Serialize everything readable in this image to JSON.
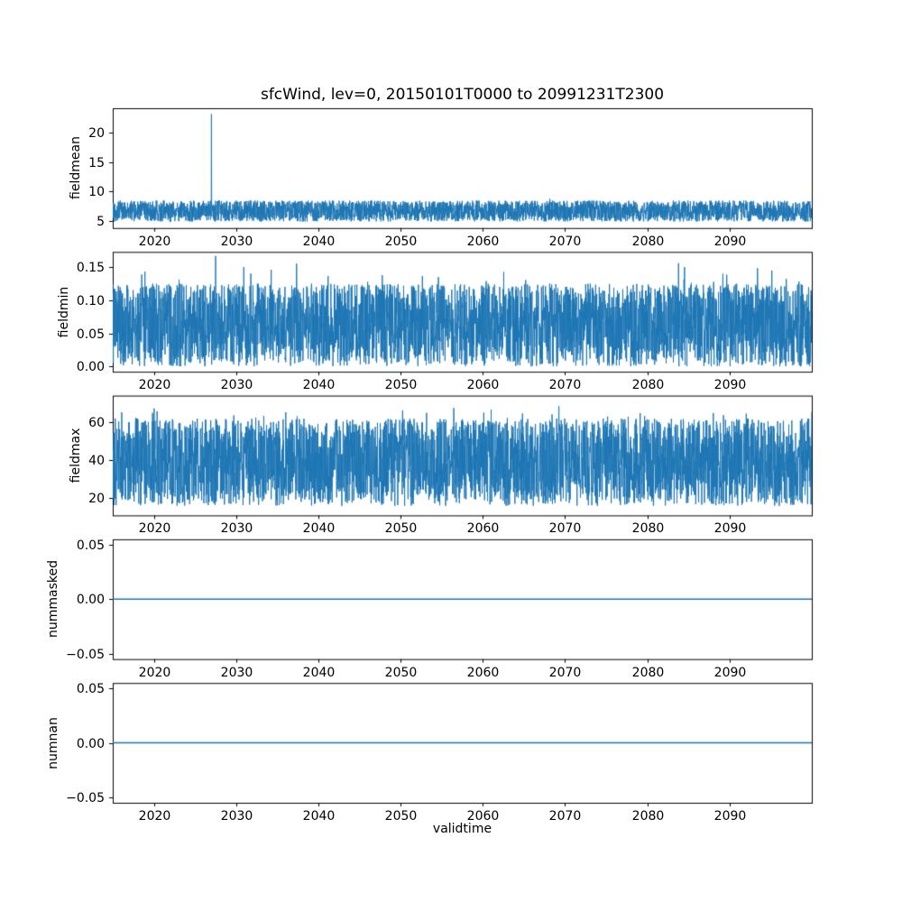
{
  "title": "sfcWind, lev=0, 20150101T0000 to 20991231T2300",
  "xlabel": "validtime",
  "chart_data": {
    "type": "line",
    "title": "sfcWind, lev=0, 20150101T0000 to 20991231T2300",
    "line_color": "#1f77b4",
    "grid": false,
    "legend": "none",
    "x_axis": {
      "label": "validtime",
      "range": [
        2015,
        2100
      ],
      "tick_values": [
        2020,
        2030,
        2040,
        2050,
        2060,
        2070,
        2080,
        2090
      ],
      "tick_labels": [
        "2020",
        "2030",
        "2040",
        "2050",
        "2060",
        "2070",
        "2080",
        "2090"
      ]
    },
    "panels": [
      {
        "ylabel": "fieldmean",
        "ylim": [
          3.8,
          24.2
        ],
        "tick_values": [
          5,
          10,
          15,
          20
        ],
        "tick_labels": [
          "5",
          "10",
          "15",
          "20"
        ],
        "series": {
          "kind": "noise",
          "description": "hourly mean surface wind speed, noisy band",
          "lo": 4.9,
          "hi": 8.5,
          "tail_prob": 0.02,
          "tail_amp": 0.5,
          "spikes": [
            {
              "x": 2027.0,
              "y": 23.2
            }
          ]
        }
      },
      {
        "ylabel": "fieldmin",
        "ylim": [
          -0.008,
          0.173
        ],
        "tick_values": [
          0.0,
          0.05,
          0.1,
          0.15
        ],
        "tick_labels": [
          "0.00",
          "0.05",
          "0.10",
          "0.15"
        ],
        "series": {
          "kind": "noise",
          "description": "minimum field value, dense band from 0 to ~0.12",
          "lo": 0.0,
          "hi": 0.125,
          "tail_prob": 0.05,
          "tail_amp": 0.032,
          "spikes": [
            {
              "x": 2027.5,
              "y": 0.167
            },
            {
              "x": 2083.8,
              "y": 0.156
            }
          ]
        }
      },
      {
        "ylabel": "fieldmax",
        "ylim": [
          11,
          74
        ],
        "tick_values": [
          20,
          40,
          60
        ],
        "tick_labels": [
          "20",
          "40",
          "60"
        ],
        "series": {
          "kind": "noise",
          "description": "maximum field value, dense band ~16 to ~62 with peaks to ~71",
          "lo": 16,
          "hi": 62,
          "tail_prob": 0.06,
          "tail_amp": 9,
          "spikes": []
        }
      },
      {
        "ylabel": "nummasked",
        "ylim": [
          -0.055,
          0.055
        ],
        "tick_values": [
          -0.05,
          0.0,
          0.05
        ],
        "tick_labels": [
          "−0.05",
          "0.00",
          "0.05"
        ],
        "series": {
          "kind": "constant",
          "value": 0,
          "description": "number of masked points, constant zero"
        }
      },
      {
        "ylabel": "numnan",
        "ylim": [
          -0.055,
          0.055
        ],
        "tick_values": [
          -0.05,
          0.0,
          0.05
        ],
        "tick_labels": [
          "−0.05",
          "0.00",
          "0.05"
        ],
        "series": {
          "kind": "constant",
          "value": 0,
          "description": "number of NaN points, constant zero"
        }
      }
    ]
  }
}
